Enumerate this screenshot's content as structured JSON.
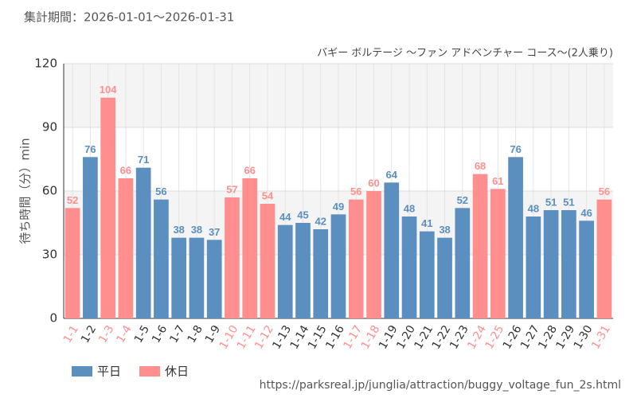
{
  "chart_data": {
    "type": "bar",
    "subtitle": "集計期間：2026-01-01～2026-01-31",
    "title": "バギー ボルテージ 〜ファン アドベンチャー コース〜(2人乗り)",
    "y_label": "待ち時間（分）min",
    "source": "https://parksreal.jp/junglia/attraction/buggy_voltage_fun_2s.html",
    "categories": [
      "1-1",
      "1-2",
      "1-3",
      "1-4",
      "1-5",
      "1-6",
      "1-7",
      "1-8",
      "1-9",
      "1-10",
      "1-11",
      "1-12",
      "1-13",
      "1-14",
      "1-15",
      "1-16",
      "1-17",
      "1-18",
      "1-19",
      "1-20",
      "1-21",
      "1-22",
      "1-23",
      "1-24",
      "1-25",
      "1-26",
      "1-27",
      "1-28",
      "1-29",
      "1-30",
      "1-31"
    ],
    "series": [
      {
        "name": "平日",
        "color": "#5b8fbf",
        "values": [
          null,
          76,
          null,
          null,
          71,
          56,
          38,
          38,
          37,
          null,
          null,
          null,
          44,
          45,
          42,
          49,
          null,
          null,
          64,
          48,
          41,
          38,
          52,
          null,
          null,
          76,
          48,
          51,
          51,
          46,
          null
        ]
      },
      {
        "name": "休日",
        "color": "#ff8f8f",
        "values": [
          52,
          null,
          104,
          66,
          null,
          null,
          null,
          null,
          null,
          57,
          66,
          54,
          null,
          null,
          null,
          null,
          56,
          60,
          null,
          null,
          null,
          null,
          null,
          68,
          61,
          null,
          null,
          null,
          null,
          null,
          56
        ]
      }
    ],
    "ylim": [
      0,
      120
    ],
    "yticks": [
      0,
      30,
      60,
      90,
      120
    ],
    "grid": true
  }
}
